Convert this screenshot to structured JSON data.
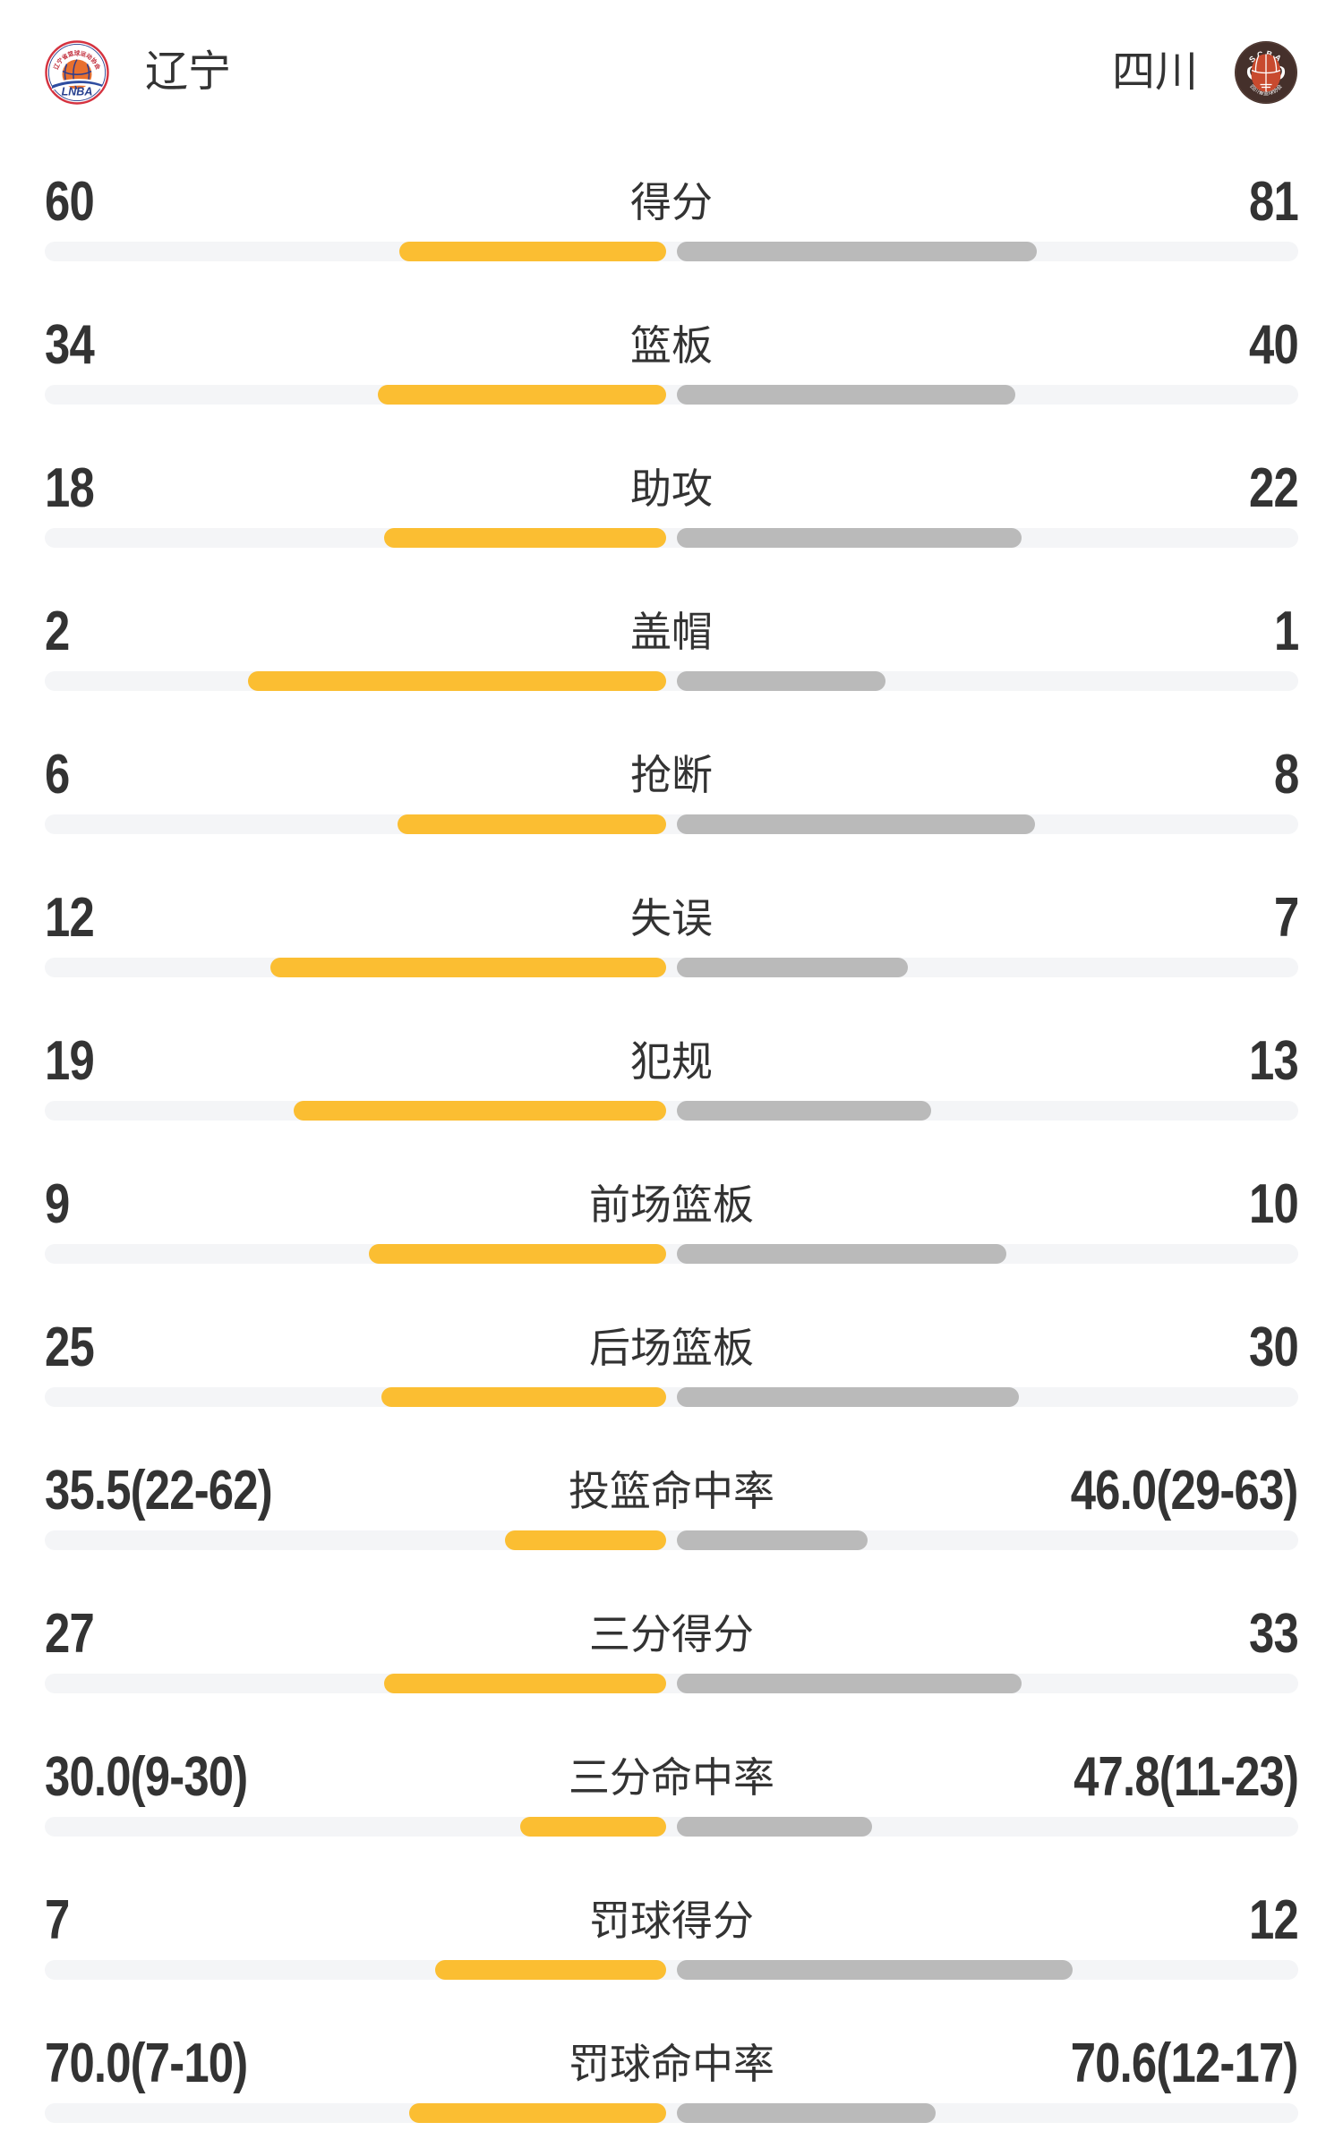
{
  "header": {
    "home": {
      "name": "辽宁"
    },
    "away": {
      "name": "四川"
    },
    "home_logo_text": {
      "ring": "辽宁省篮球运动协会",
      "banner": "LNBA"
    },
    "away_logo_text": {
      "top": "SCBA",
      "bottom": "四川省篮球协会"
    }
  },
  "colors": {
    "home_bar": "#FBBE32",
    "away_bar": "#BABABA",
    "track": "#F4F5F7",
    "text": "#333333",
    "background": "#FFFFFF"
  },
  "chart_data": {
    "type": "bar",
    "orientation": "horizontal-paired-from-center",
    "series_names": [
      "辽宁",
      "四川"
    ],
    "legend": [
      {
        "name": "辽宁",
        "color": "#FBBE32",
        "side": "left"
      },
      {
        "name": "四川",
        "color": "#BABABA",
        "side": "right"
      }
    ],
    "stats": [
      {
        "label": "得分",
        "home": "60",
        "away": "81",
        "home_value": 60,
        "away_value": 81,
        "kind": "count"
      },
      {
        "label": "篮板",
        "home": "34",
        "away": "40",
        "home_value": 34,
        "away_value": 40,
        "kind": "count"
      },
      {
        "label": "助攻",
        "home": "18",
        "away": "22",
        "home_value": 18,
        "away_value": 22,
        "kind": "count"
      },
      {
        "label": "盖帽",
        "home": "2",
        "away": "1",
        "home_value": 2,
        "away_value": 1,
        "kind": "count"
      },
      {
        "label": "抢断",
        "home": "6",
        "away": "8",
        "home_value": 6,
        "away_value": 8,
        "kind": "count"
      },
      {
        "label": "失误",
        "home": "12",
        "away": "7",
        "home_value": 12,
        "away_value": 7,
        "kind": "count"
      },
      {
        "label": "犯规",
        "home": "19",
        "away": "13",
        "home_value": 19,
        "away_value": 13,
        "kind": "count"
      },
      {
        "label": "前场篮板",
        "home": "9",
        "away": "10",
        "home_value": 9,
        "away_value": 10,
        "kind": "count"
      },
      {
        "label": "后场篮板",
        "home": "25",
        "away": "30",
        "home_value": 25,
        "away_value": 30,
        "kind": "count"
      },
      {
        "label": "投篮命中率",
        "home": "35.5(22-62)",
        "away": "46.0(29-63)",
        "home_value": 35.5,
        "away_value": 46.0,
        "kind": "percent"
      },
      {
        "label": "三分得分",
        "home": "27",
        "away": "33",
        "home_value": 27,
        "away_value": 33,
        "kind": "count"
      },
      {
        "label": "三分命中率",
        "home": "30.0(9-30)",
        "away": "47.8(11-23)",
        "home_value": 30.0,
        "away_value": 47.8,
        "kind": "percent"
      },
      {
        "label": "罚球得分",
        "home": "7",
        "away": "12",
        "home_value": 7,
        "away_value": 12,
        "kind": "count"
      },
      {
        "label": "罚球命中率",
        "home": "70.0(7-10)",
        "away": "70.6(12-17)",
        "home_value": 70.0,
        "away_value": 70.6,
        "kind": "percent"
      }
    ]
  }
}
